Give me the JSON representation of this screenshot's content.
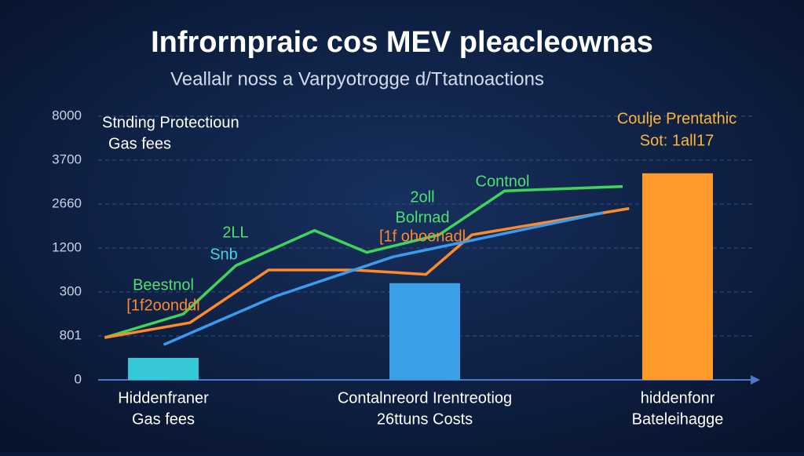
{
  "chart_data": {
    "type": "bar",
    "title": "Infrornpraic cos MEV pleacleownas",
    "subtitle": "Veallalr noss a Varpyotrogge d/Ttatnoactions",
    "categories": [
      [
        "Hiddenfraner",
        "Gas fees"
      ],
      [
        "Contalnreord Irentreotiog",
        "26ttuns Costs"
      ],
      [
        "hiddenfonr",
        "Bateleihagge"
      ]
    ],
    "values": [
      0.5,
      2.2,
      4.7
    ],
    "colors": [
      "#35c9d6",
      "#3aa0e8",
      "#ff9a2a"
    ],
    "ylim": [
      0,
      6
    ],
    "yticks": [
      {
        "value": 0,
        "label": "0"
      },
      {
        "value": 1,
        "label": "801"
      },
      {
        "value": 2,
        "label": "300"
      },
      {
        "value": 3,
        "label": "1200"
      },
      {
        "value": 4,
        "label": "2660"
      },
      {
        "value": 5,
        "label": "3700"
      },
      {
        "value": 6,
        "label": "8000"
      }
    ],
    "xlim": [
      0,
      10
    ],
    "grid": true,
    "series": [
      {
        "color": "#3fd45a",
        "x": [
          0.1,
          1.3,
          2.1,
          3.3,
          4.1,
          5.2,
          6.2,
          8.0
        ],
        "values": [
          0.96,
          1.5,
          2.6,
          3.4,
          2.9,
          3.3,
          4.3,
          4.4
        ]
      },
      {
        "color": "#ff8a2a",
        "x": [
          0.1,
          1.4,
          2.6,
          3.9,
          5.0,
          5.7,
          8.1
        ],
        "values": [
          0.96,
          1.3,
          2.5,
          2.5,
          2.4,
          3.3,
          3.9
        ]
      },
      {
        "color": "#3a9cf0",
        "x": [
          1.0,
          2.7,
          4.5,
          7.7
        ],
        "values": [
          0.8,
          1.9,
          2.8,
          3.8
        ]
      }
    ],
    "annotations": [
      "Stnding Protectioun",
      "Gas fees",
      "Coulje Prentathic",
      "Sot: 1all17",
      "Beestnol",
      "[1f2oonddl",
      "2LL",
      "Snb",
      "2oll",
      "Bolrnad",
      "[1f ohoonadl",
      "Contnol"
    ]
  }
}
